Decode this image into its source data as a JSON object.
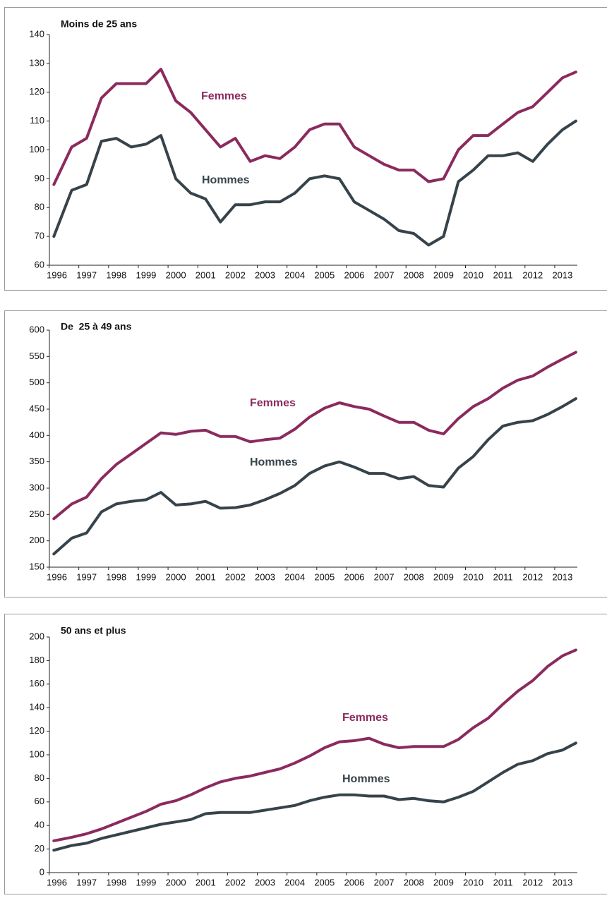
{
  "chart_data": [
    {
      "type": "line",
      "title": "Moins de 25 ans",
      "x": [
        1995.9,
        1996.5,
        1997,
        1997.5,
        1998,
        1998.5,
        1999,
        1999.5,
        2000,
        2000.5,
        2001,
        2001.5,
        2002,
        2002.5,
        2003,
        2003.5,
        2004,
        2004.5,
        2005,
        2005.5,
        2006,
        2006.5,
        2007,
        2007.5,
        2008,
        2008.5,
        2009,
        2009.5,
        2010,
        2010.5,
        2011,
        2011.5,
        2012,
        2012.5,
        2013,
        2013.45
      ],
      "xlim": [
        1995.75,
        2013.5
      ],
      "xticks": [
        1996,
        1997,
        1998,
        1999,
        2000,
        2001,
        2002,
        2003,
        2004,
        2005,
        2006,
        2007,
        2008,
        2009,
        2010,
        2011,
        2012,
        2013
      ],
      "ylim": [
        60,
        140
      ],
      "yticks": [
        60,
        70,
        80,
        90,
        100,
        110,
        120,
        130,
        140
      ],
      "series": [
        {
          "name": "Femmes",
          "color": "#8b2a5e",
          "values": [
            88,
            101,
            104,
            118,
            123,
            123,
            123,
            128,
            117,
            113,
            107,
            101,
            104,
            96,
            98,
            97,
            101,
            107,
            109,
            109,
            101,
            98,
            95,
            93,
            93,
            89,
            90,
            100,
            105,
            105,
            109,
            113,
            115,
            120,
            125,
            127
          ]
        },
        {
          "name": "Hommes",
          "color": "#37434a",
          "values": [
            70,
            86,
            88,
            103,
            104,
            101,
            102,
            105,
            90,
            85,
            83,
            75,
            81,
            81,
            82,
            82,
            85,
            90,
            91,
            90,
            82,
            79,
            76,
            72,
            71,
            67,
            70,
            89,
            93,
            98,
            98,
            99,
            96,
            102,
            107,
            110
          ]
        }
      ]
    },
    {
      "type": "line",
      "title": "De  25 à 49 ans",
      "x": [
        1995.9,
        1996.5,
        1997,
        1997.5,
        1998,
        1998.5,
        1999,
        1999.5,
        2000,
        2000.5,
        2001,
        2001.5,
        2002,
        2002.5,
        2003,
        2003.5,
        2004,
        2004.5,
        2005,
        2005.5,
        2006,
        2006.5,
        2007,
        2007.5,
        2008,
        2008.5,
        2009,
        2009.5,
        2010,
        2010.5,
        2011,
        2011.5,
        2012,
        2012.5,
        2013,
        2013.45
      ],
      "xlim": [
        1995.75,
        2013.5
      ],
      "xticks": [
        1996,
        1997,
        1998,
        1999,
        2000,
        2001,
        2002,
        2003,
        2004,
        2005,
        2006,
        2007,
        2008,
        2009,
        2010,
        2011,
        2012,
        2013
      ],
      "ylim": [
        150,
        600
      ],
      "yticks": [
        150,
        200,
        250,
        300,
        350,
        400,
        450,
        500,
        550,
        600
      ],
      "series": [
        {
          "name": "Femmes",
          "color": "#8b2a5e",
          "values": [
            242,
            270,
            283,
            318,
            345,
            365,
            385,
            405,
            402,
            408,
            410,
            398,
            398,
            388,
            392,
            395,
            412,
            435,
            452,
            462,
            455,
            450,
            437,
            425,
            425,
            410,
            403,
            432,
            455,
            470,
            490,
            505,
            513,
            530,
            545,
            558
          ]
        },
        {
          "name": "Hommes",
          "color": "#37434a",
          "values": [
            175,
            205,
            215,
            255,
            270,
            275,
            278,
            292,
            268,
            270,
            275,
            262,
            263,
            268,
            278,
            290,
            305,
            328,
            342,
            350,
            340,
            328,
            328,
            318,
            322,
            305,
            302,
            338,
            360,
            392,
            418,
            425,
            428,
            440,
            455,
            470
          ]
        }
      ]
    },
    {
      "type": "line",
      "title": "50 ans et plus",
      "x": [
        1995.9,
        1996.5,
        1997,
        1997.5,
        1998,
        1998.5,
        1999,
        1999.5,
        2000,
        2000.5,
        2001,
        2001.5,
        2002,
        2002.5,
        2003,
        2003.5,
        2004,
        2004.5,
        2005,
        2005.5,
        2006,
        2006.5,
        2007,
        2007.5,
        2008,
        2008.5,
        2009,
        2009.5,
        2010,
        2010.5,
        2011,
        2011.5,
        2012,
        2012.5,
        2013,
        2013.45
      ],
      "xlim": [
        1995.75,
        2013.5
      ],
      "xticks": [
        1996,
        1997,
        1998,
        1999,
        2000,
        2001,
        2002,
        2003,
        2004,
        2005,
        2006,
        2007,
        2008,
        2009,
        2010,
        2011,
        2012,
        2013
      ],
      "ylim": [
        0,
        200
      ],
      "yticks": [
        0,
        20,
        40,
        60,
        80,
        100,
        120,
        140,
        160,
        180,
        200
      ],
      "series": [
        {
          "name": "Femmes",
          "color": "#8b2a5e",
          "values": [
            27,
            30,
            33,
            37,
            42,
            47,
            52,
            58,
            61,
            66,
            72,
            77,
            80,
            82,
            85,
            88,
            93,
            99,
            106,
            111,
            112,
            114,
            109,
            106,
            107,
            107,
            107,
            113,
            123,
            131,
            143,
            154,
            163,
            175,
            184,
            189
          ]
        },
        {
          "name": "Hommes",
          "color": "#37434a",
          "values": [
            19,
            23,
            25,
            29,
            32,
            35,
            38,
            41,
            43,
            45,
            50,
            51,
            51,
            51,
            53,
            55,
            57,
            61,
            64,
            66,
            66,
            65,
            65,
            62,
            63,
            61,
            60,
            64,
            69,
            77,
            85,
            92,
            95,
            101,
            104,
            110
          ]
        }
      ]
    }
  ]
}
